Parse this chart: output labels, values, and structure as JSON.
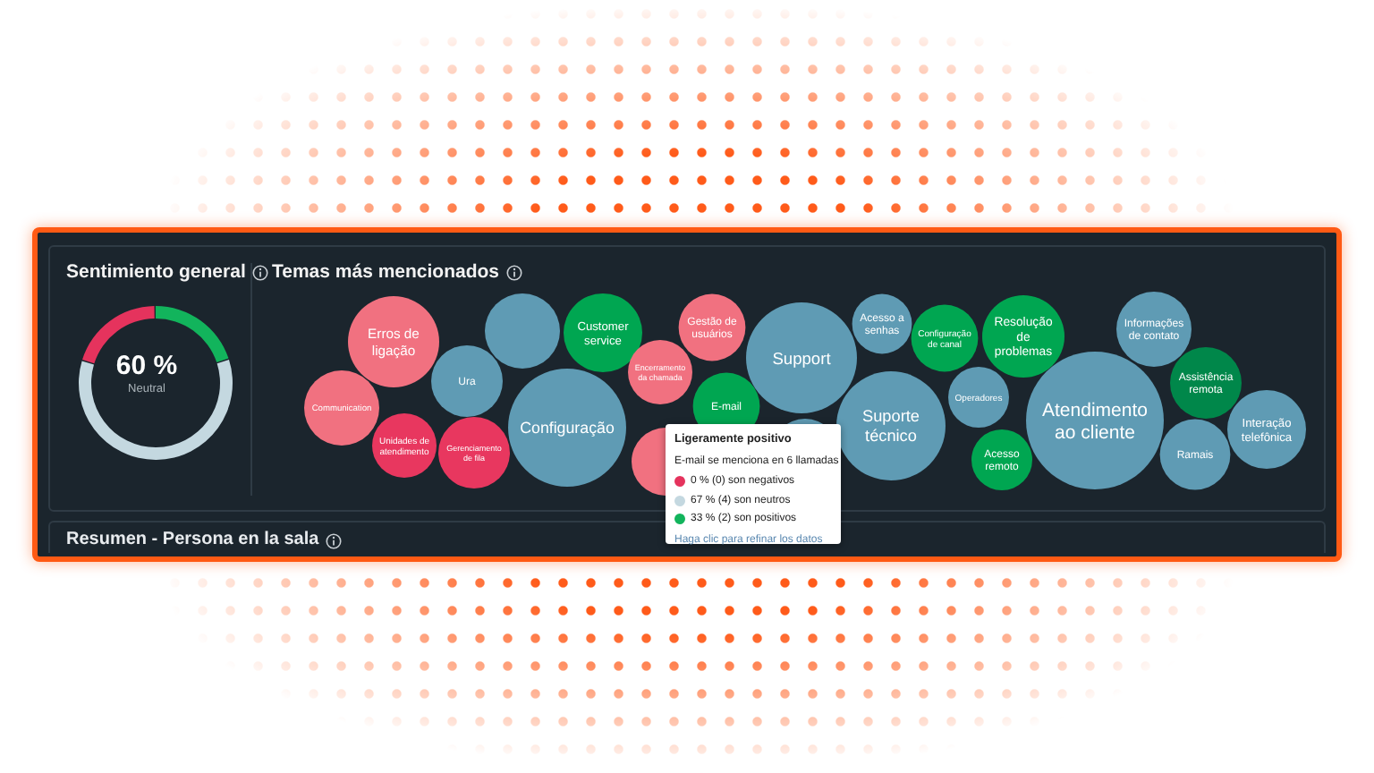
{
  "chart_data": [
    {
      "type": "donut",
      "title": "Sentimiento general",
      "categories": [
        null,
        "Neutral",
        null
      ],
      "values": [
        20,
        60,
        20
      ],
      "colors": [
        "#12b45c",
        "#c4d8e0",
        "#e5335d"
      ],
      "value_labels": [
        null,
        "60 %",
        null
      ],
      "annotations": [
        "Resumen - Persona en la sala"
      ]
    },
    {
      "type": "other",
      "title": "Temas más mencionados",
      "categories": [
        "Communication",
        "Erros de ligação",
        "Unidades de atendimento",
        "Ura",
        "Gerenciamento de fila",
        null,
        "Configuração",
        "Customer service",
        null,
        "Encerramento da chamada",
        "Gestão de usuários",
        "E-mail",
        "Support",
        null,
        "Acesso a senhas",
        "Suporte técnico",
        "Configuração de canal",
        "Operadores",
        "Acesso remoto",
        "Resolução de problemas",
        "Atendimento ao cliente",
        "Informações de contato",
        "Ramais",
        "Assistência remota",
        "Interação telefônica"
      ],
      "colors": [
        "#f17180",
        "#f17180",
        "#e8375f",
        "#5f9bb4",
        "#e8375f",
        "#5f9bb4",
        "#5f9bb4",
        "#00a651",
        "#f17180",
        "#f17180",
        "#f17180",
        "#00a651",
        "#5f9bb4",
        "#5f9bb4",
        "#5f9bb4",
        "#5f9bb4",
        "#00a651",
        "#5f9bb4",
        "#00a651",
        "#00a651",
        "#5f9bb4",
        "#5f9bb4",
        "#5f9bb4",
        "#00874a",
        "#5f9bb4"
      ],
      "annotations": [
        "Ligeramente positivo",
        "E-mail se menciona en 6 llamadas",
        "0 % (0) son negativos",
        "67 % (4) son neutros",
        "33 % (2) son positivos",
        "Haga clic para refinar los datos"
      ]
    }
  ]
}
